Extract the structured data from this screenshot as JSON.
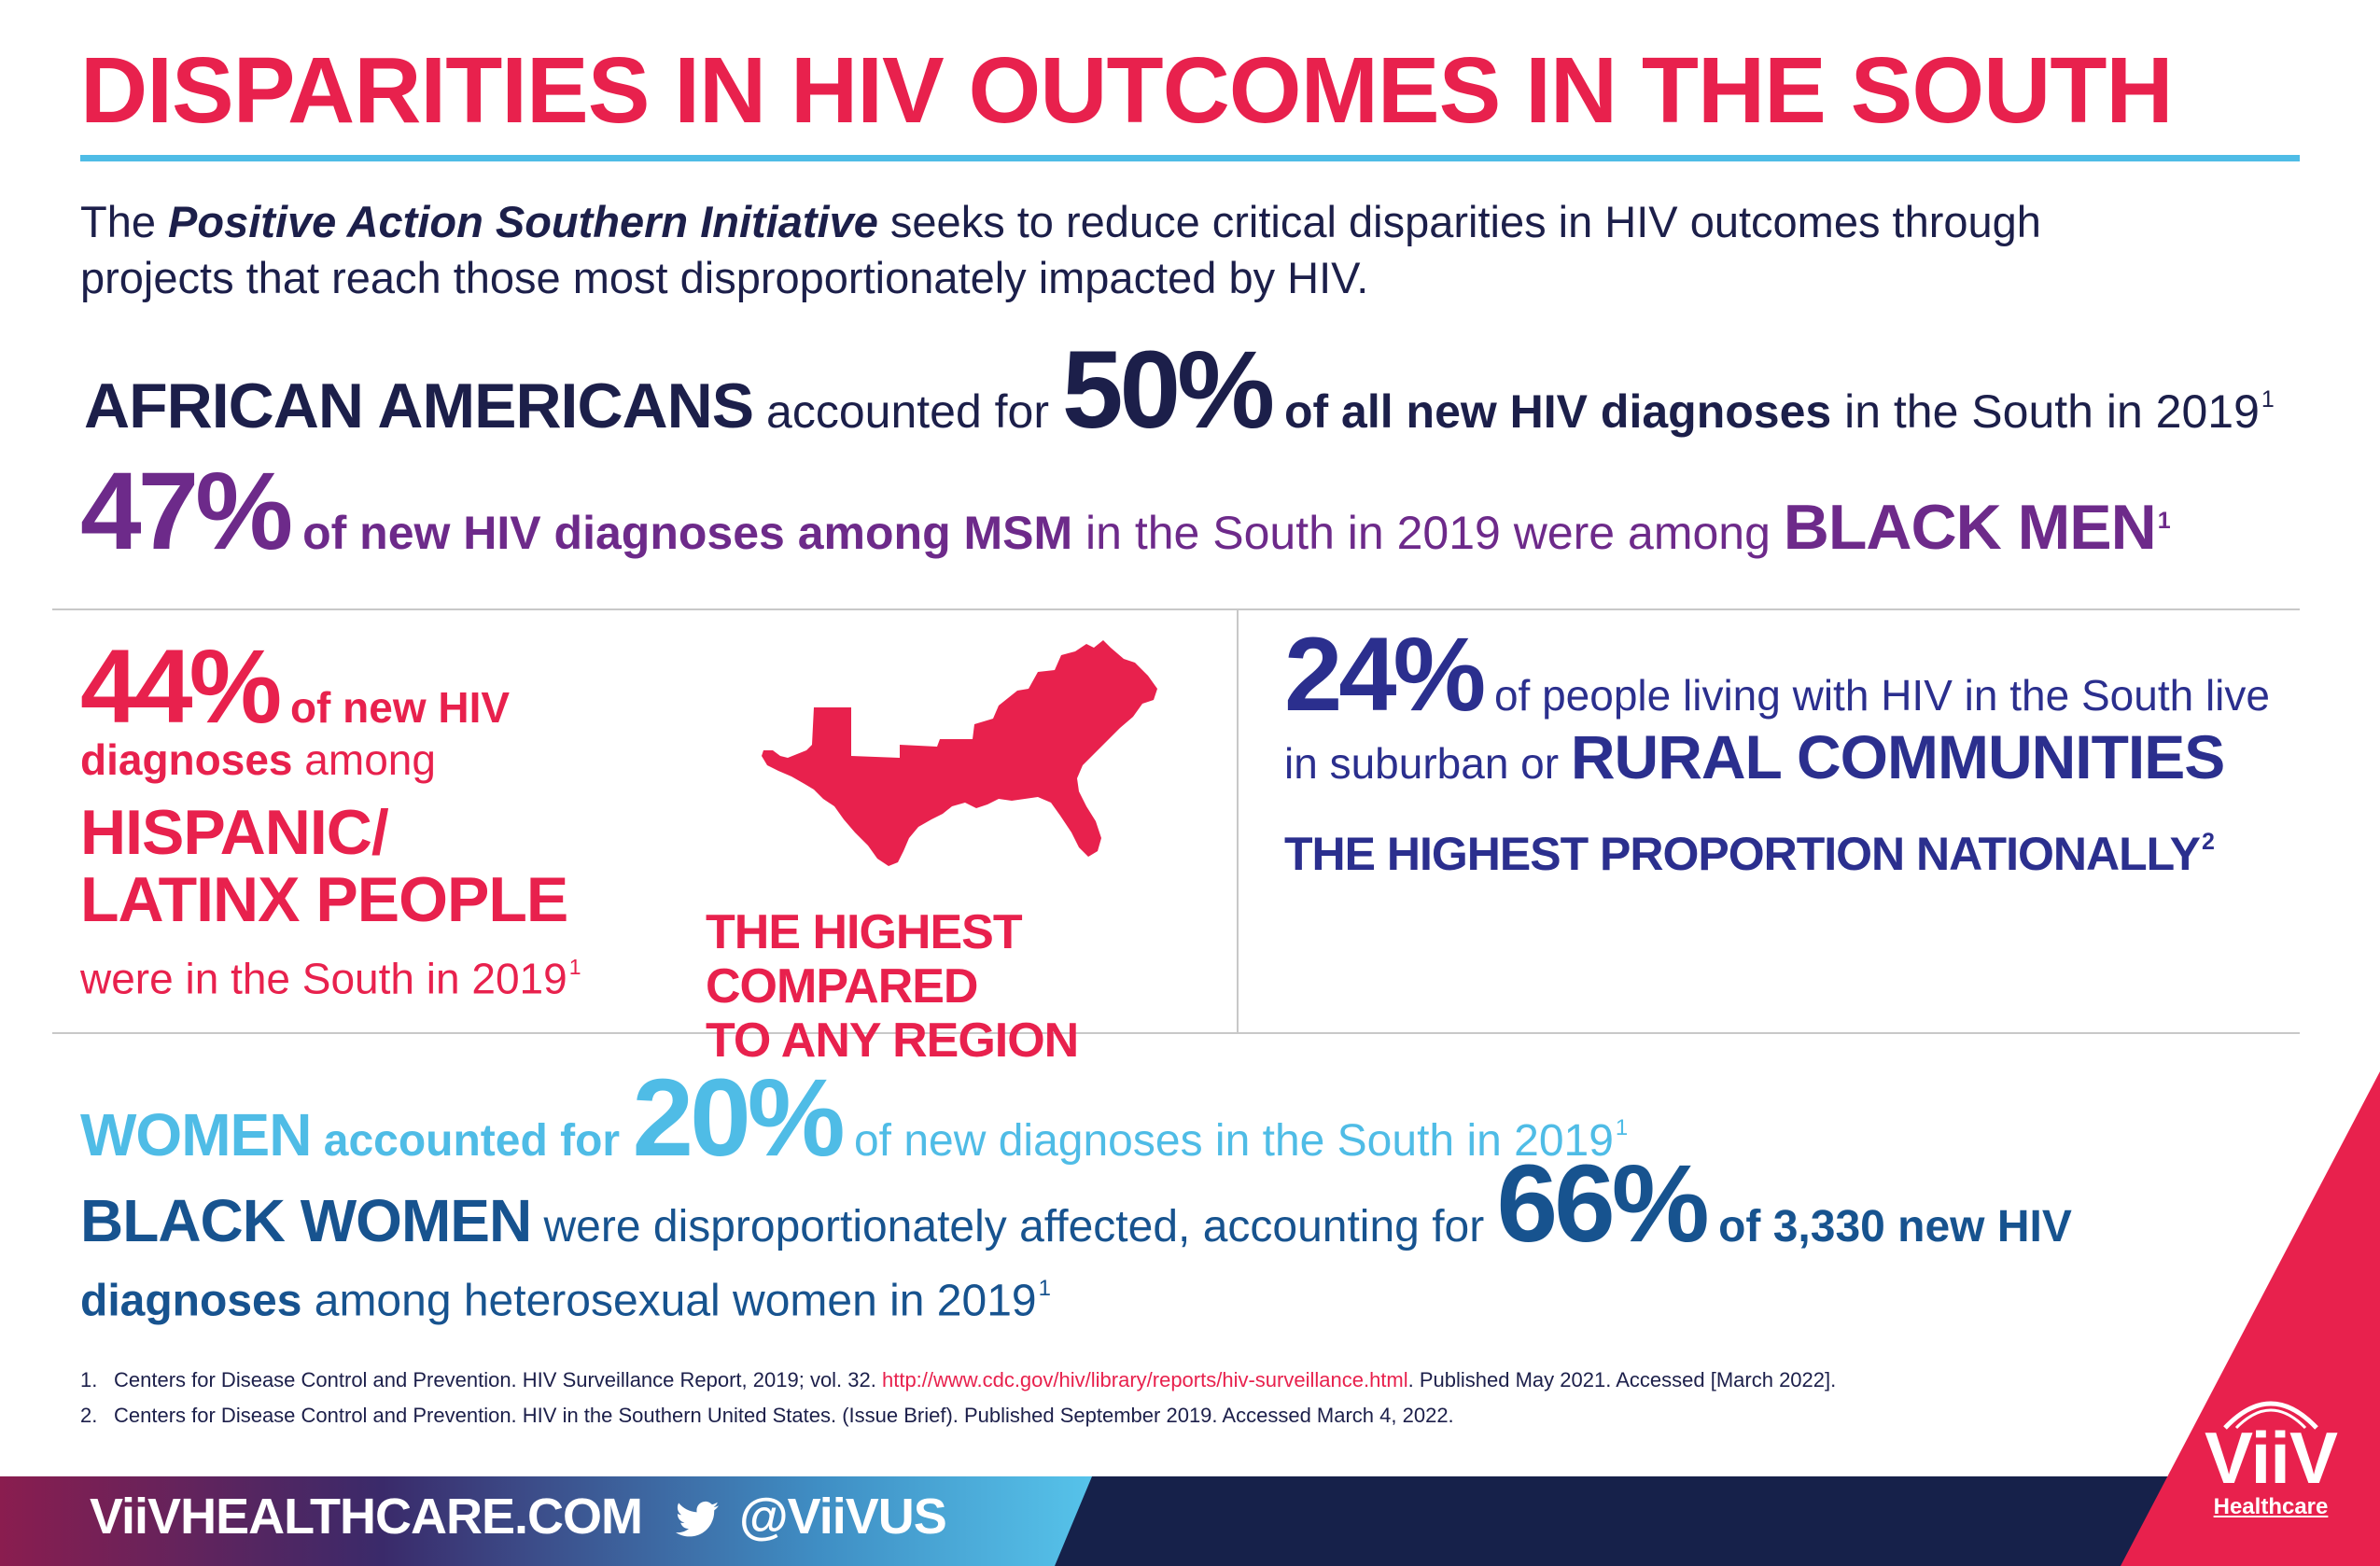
{
  "title": "DISPARITIES IN HIV OUTCOMES IN THE SOUTH",
  "intro": {
    "pre": "The ",
    "initiative": "Positive Action Southern Initiative",
    "post": " seeks to reduce critical disparities in HIV outcomes through projects that reach those most disproportionately impacted by HIV."
  },
  "stat_african_americans": {
    "group": "AFRICAN AMERICANS",
    "t1": " accounted for ",
    "pct": "50%",
    "t2": " of all new HIV diagnoses",
    "t3": " in the South in 2019",
    "fn": "1"
  },
  "stat_black_men": {
    "pct": "47%",
    "t1": " of new HIV diagnoses among MSM",
    "t2": " in the South in 2019 were among ",
    "group": "BLACK MEN",
    "fn": "1"
  },
  "stat_hispanic": {
    "pct": "44%",
    "t1": " of new HIV",
    "t2": "diagnoses",
    "t3": " among",
    "group_line1": "HISPANIC/",
    "group_line2": "LATINX PEOPLE",
    "t4": "were in the South in 2019",
    "fn": "1",
    "tag_line1": "THE HIGHEST COMPARED",
    "tag_line2": "TO ANY REGION"
  },
  "stat_rural": {
    "pct": "24%",
    "t1": " of people living with HIV in the South live in suburban or ",
    "group": "RURAL COMMUNITIES",
    "tag": "THE HIGHEST PROPORTION NATIONALLY",
    "fn": "2"
  },
  "stat_women": {
    "group": "WOMEN",
    "t1": " accounted for ",
    "pct": "20%",
    "t2": " of new diagnoses in the South in 2019",
    "fn": "1"
  },
  "stat_black_women": {
    "group": "BLACK WOMEN",
    "t1": " were disproportionately affected, accounting for ",
    "pct": "66%",
    "t2": " of 3,330 new HIV diagnoses",
    "t3": " among heterosexual women in 2019",
    "fn": "1"
  },
  "references": [
    {
      "num": "1.",
      "pre": "Centers for Disease Control and Prevention. HIV Surveillance Report, 2019; vol. 32. ",
      "link": "http://www.cdc.gov/hiv/library/reports/hiv-surveillance.html",
      "post": ". Published May 2021. Accessed [March 2022]."
    },
    {
      "num": "2.",
      "pre": "Centers for Disease Control and Prevention. HIV in the Southern United States. (Issue Brief). Published September 2019. Accessed March 4, 2022.",
      "link": "",
      "post": ""
    }
  ],
  "footer": {
    "website": "ViiVHEALTHCARE.COM",
    "twitter_handle": "@ViiVUS",
    "logo_name": "ViiV",
    "logo_sub": "Healthcare"
  },
  "colors": {
    "pink": "#e8214d",
    "navy": "#1c1f4a",
    "purple": "#6d2a8a",
    "royal": "#2b2f8e",
    "sky": "#4fbce6",
    "blue": "#17538f"
  },
  "icons": [
    "twitter-bird-icon",
    "south-us-map",
    "viiv-logo"
  ]
}
